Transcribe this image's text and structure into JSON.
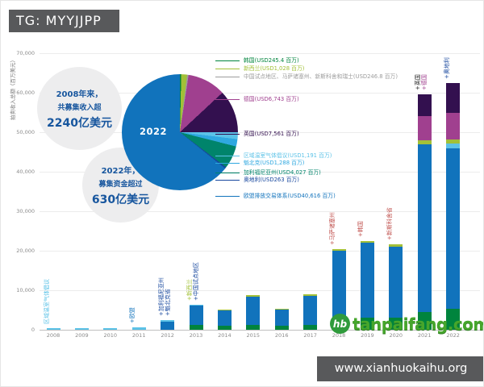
{
  "badge": {
    "text": "TG: MYYJJPP"
  },
  "footer": {
    "site": "www.xianhuokaihu.org"
  },
  "logo": {
    "symbol": "hb",
    "text": "tanpaifang.com"
  },
  "callouts": [
    {
      "lines": [
        "2008年来，",
        "共募集收入超",
        "2240亿美元"
      ]
    },
    {
      "lines": [
        "2022年，",
        "募集资金超过",
        "630亿美元"
      ]
    }
  ],
  "palette": {
    "blue": "#1173bc",
    "lightblue": "#5bc2e7",
    "cyan": "#2fa8e0",
    "teal": "#00846b",
    "green": "#00843d",
    "lime": "#a2c037",
    "magenta": "#a0408f",
    "darkpurple": "#33104f",
    "navy": "#17479e",
    "gray": "#9c9c9c",
    "red": "#c0504d",
    "dark": "#1a1a1a"
  },
  "chart_data": [
    {
      "type": "pie",
      "center_label": "2022",
      "slices": [
        {
          "name": "韩国",
          "label": "韩国(USD245.4 百万)",
          "value": 245.4,
          "color": "green",
          "label_top": 72
        },
        {
          "name": "新西兰",
          "label": "新西兰(USD1,028 百万)",
          "value": 1028,
          "color": "lime",
          "label_top": 82
        },
        {
          "name": "中国试点地区、马萨诸塞州、新斯科舍和瑞士",
          "label": "中国试点地区、马萨诸塞州、新斯科舍和瑞士(USD246.8 百万)",
          "value": 246.8,
          "color": "gray",
          "label_top": 92
        },
        {
          "name": "德国",
          "label": "德国(USD6,743 百万)",
          "value": 6743,
          "color": "magenta",
          "label_top": 120
        },
        {
          "name": "英国",
          "label": "英国(USD7,561 百万)",
          "value": 7561,
          "color": "darkpurple",
          "label_top": 163
        },
        {
          "name": "区域温室气体倡议",
          "label": "区域温室气体倡议(USD1,191 百万)",
          "value": 1191,
          "color": "lightblue",
          "label_top": 190
        },
        {
          "name": "魁北克",
          "label": "魁北克(USD1,288 百万)",
          "value": 1288,
          "color": "cyan",
          "label_top": 199
        },
        {
          "name": "加利福尼亚州",
          "label": "加利福尼亚州(USD4,027 百万)",
          "value": 4027,
          "color": "teal",
          "label_top": 211
        },
        {
          "name": "奥地利",
          "label": "奥地利(USD263 百万)",
          "value": 263,
          "color": "navy",
          "label_top": 220
        },
        {
          "name": "欧盟排放交易体系",
          "label": "欧盟排放交易体系(USD40,616 百万)",
          "value": 40616,
          "color": "blue",
          "label_top": 240
        }
      ]
    },
    {
      "type": "bar",
      "stacked": true,
      "ylabel": "拍卖收入总额（百万美元）",
      "ylim": [
        0,
        70000
      ],
      "yticks": [
        "0",
        "10,000",
        "20,000",
        "30,000",
        "40,000",
        "50,000",
        "60,000",
        "70,000"
      ],
      "bars": [
        {
          "year": "2008",
          "segments": [
            {
              "color": "lightblue",
              "value": 400
            }
          ],
          "ann": [
            {
              "text": "区域温室气体倡议",
              "color": "lightblue"
            }
          ]
        },
        {
          "year": "2009",
          "segments": [
            {
              "color": "lightblue",
              "value": 450
            }
          ]
        },
        {
          "year": "2010",
          "segments": [
            {
              "color": "lightblue",
              "value": 450
            }
          ]
        },
        {
          "year": "2011",
          "segments": [
            {
              "color": "lightblue",
              "value": 600
            }
          ],
          "ann": [
            {
              "text": "+欧盟",
              "color": "blue"
            }
          ]
        },
        {
          "year": "2012",
          "segments": [
            {
              "color": "blue",
              "value": 2100
            },
            {
              "color": "lightblue",
              "value": 400
            }
          ],
          "ann": [
            {
              "text": "+加利福尼亚州",
              "color": "navy"
            },
            {
              "text": "+魁北克省",
              "color": "navy"
            }
          ]
        },
        {
          "year": "2013",
          "segments": [
            {
              "color": "green",
              "value": 1200
            },
            {
              "color": "blue",
              "value": 4900
            },
            {
              "color": "lightblue",
              "value": 300
            }
          ],
          "ann": [
            {
              "text": "+新西兰",
              "color": "lime"
            },
            {
              "text": "+中国试点地区",
              "color": "navy"
            }
          ]
        },
        {
          "year": "2014",
          "segments": [
            {
              "color": "green",
              "value": 1100
            },
            {
              "color": "blue",
              "value": 3900
            },
            {
              "color": "lime",
              "value": 200
            }
          ]
        },
        {
          "year": "2015",
          "segments": [
            {
              "color": "green",
              "value": 1300
            },
            {
              "color": "blue",
              "value": 7100
            },
            {
              "color": "lime",
              "value": 400
            }
          ]
        },
        {
          "year": "2016",
          "segments": [
            {
              "color": "green",
              "value": 1000
            },
            {
              "color": "blue",
              "value": 4100
            },
            {
              "color": "lime",
              "value": 300
            }
          ]
        },
        {
          "year": "2017",
          "segments": [
            {
              "color": "green",
              "value": 1300
            },
            {
              "color": "blue",
              "value": 7200
            },
            {
              "color": "lime",
              "value": 400
            }
          ]
        },
        {
          "year": "2018",
          "segments": [
            {
              "color": "green",
              "value": 2300
            },
            {
              "color": "blue",
              "value": 17700
            },
            {
              "color": "lime",
              "value": 500
            }
          ],
          "ann": [
            {
              "text": "+马萨诸塞州",
              "color": "red"
            }
          ]
        },
        {
          "year": "2019",
          "segments": [
            {
              "color": "green",
              "value": 3100
            },
            {
              "color": "blue",
              "value": 18900
            },
            {
              "color": "lime",
              "value": 500
            }
          ],
          "ann": [
            {
              "text": "+韩国",
              "color": "red"
            }
          ]
        },
        {
          "year": "2020",
          "segments": [
            {
              "color": "green",
              "value": 3000
            },
            {
              "color": "blue",
              "value": 18100
            },
            {
              "color": "lime",
              "value": 500
            }
          ],
          "ann": [
            {
              "text": "+新斯科舍省",
              "color": "red"
            }
          ]
        },
        {
          "year": "2021",
          "segments": [
            {
              "color": "green",
              "value": 4400
            },
            {
              "color": "blue",
              "value": 42600
            },
            {
              "color": "lime",
              "value": 1000
            },
            {
              "color": "magenta",
              "value": 6000
            },
            {
              "color": "darkpurple",
              "value": 5500
            }
          ],
          "ann": [
            {
              "text": "+英国",
              "color": "dark"
            },
            {
              "text": "+德国",
              "color": "magenta"
            }
          ]
        },
        {
          "year": "2022",
          "segments": [
            {
              "color": "green",
              "value": 5300
            },
            {
              "color": "blue",
              "value": 40600
            },
            {
              "color": "lightblue",
              "value": 1200
            },
            {
              "color": "lime",
              "value": 1050
            },
            {
              "color": "magenta",
              "value": 6750
            },
            {
              "color": "darkpurple",
              "value": 7550
            }
          ],
          "ann": [
            {
              "text": "+奥地利",
              "color": "navy"
            }
          ]
        }
      ]
    }
  ]
}
